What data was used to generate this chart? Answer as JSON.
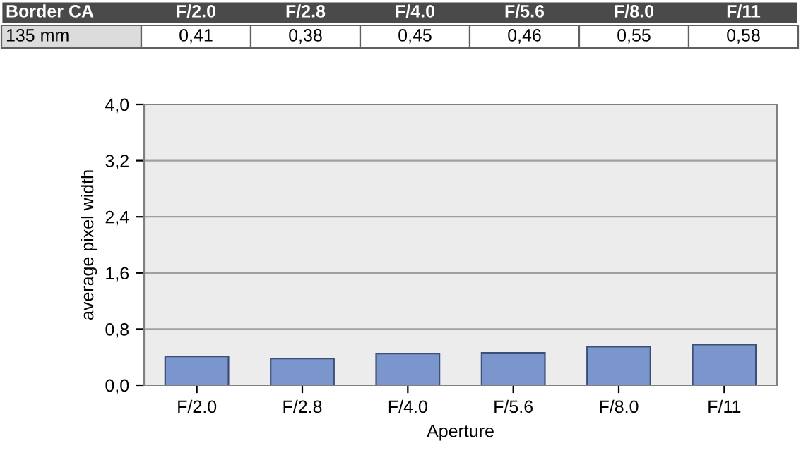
{
  "chart_data": {
    "type": "bar",
    "title": "Border CA",
    "categories": [
      "F/2.0",
      "F/2.8",
      "F/4.0",
      "F/5.6",
      "F/8.0",
      "F/11"
    ],
    "series": [
      {
        "color": "#7b96cc",
        "values": [
          0.41,
          0.38,
          0.45,
          0.46,
          0.55,
          0.58
        ],
        "value_labels": [
          "0,41",
          "0,38",
          "0,45",
          "0,46",
          "0,55",
          "0,58"
        ]
      }
    ],
    "annotations": [
      "135 mm"
    ],
    "xlabel": "Aperture",
    "ylabel": "average pixel width",
    "ylim": [
      0,
      4.0
    ],
    "yticks": [
      {
        "value": 0,
        "label": "0,0"
      },
      {
        "value": 0.8,
        "label": "0,8"
      },
      {
        "value": 1.6,
        "label": "1,6"
      },
      {
        "value": 2.4,
        "label": "2,4"
      },
      {
        "value": 3.2,
        "label": "3,2"
      },
      {
        "value": 4.0,
        "label": "4,0"
      }
    ],
    "grid": "y",
    "legend": false
  }
}
